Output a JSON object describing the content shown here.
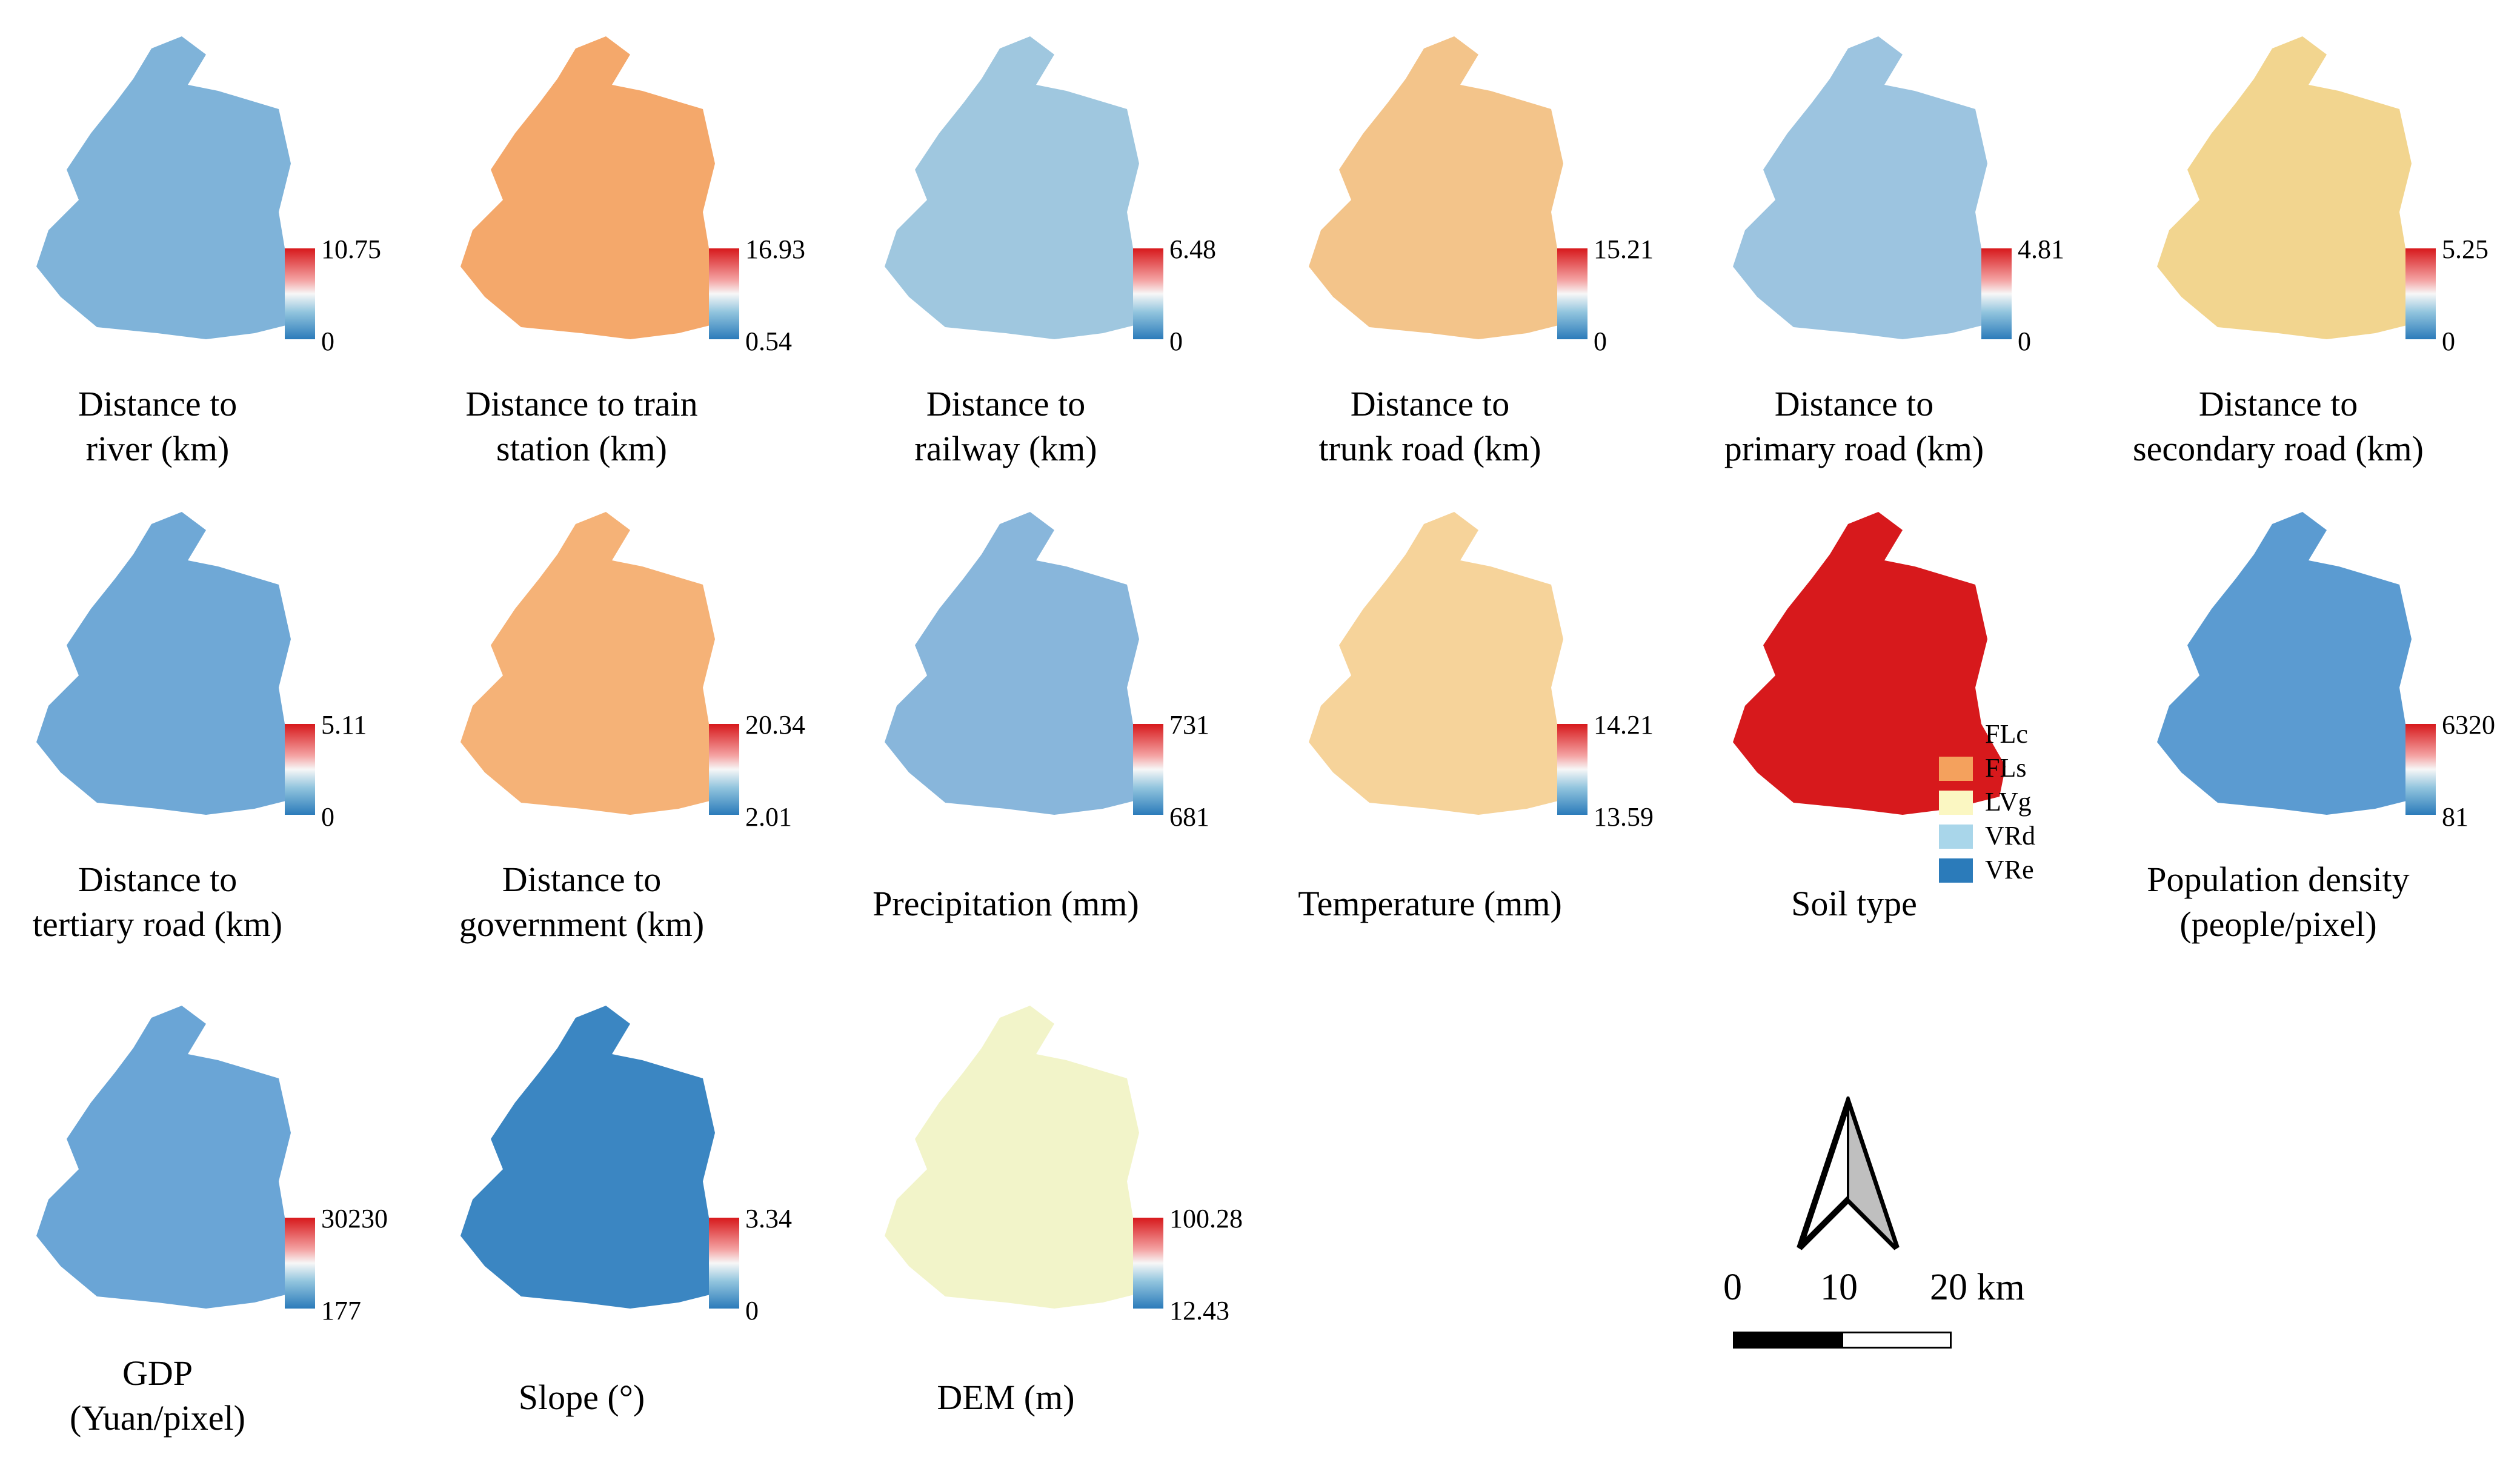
{
  "colors": {
    "ramp_high": "#d7191c",
    "ramp_mid": "#f7f7f7",
    "ramp_low": "#2b7bba"
  },
  "panels": [
    {
      "title_line1": "Distance to",
      "title_line2": "river (km)",
      "legend_max": "10.75",
      "legend_min": "0",
      "fill": "#7fb3d9"
    },
    {
      "title_line1": "Distance to train",
      "title_line2": "station (km)",
      "legend_max": "16.93",
      "legend_min": "0.54",
      "fill": "#f4a86b"
    },
    {
      "title_line1": "Distance to",
      "title_line2": "railway (km)",
      "legend_max": "6.48",
      "legend_min": "0",
      "fill": "#9fc7df"
    },
    {
      "title_line1": "Distance to",
      "title_line2": "trunk road (km)",
      "legend_max": "15.21",
      "legend_min": "0",
      "fill": "#f3c48a"
    },
    {
      "title_line1": "Distance to",
      "title_line2": "primary road (km)",
      "legend_max": "4.81",
      "legend_min": "0",
      "fill": "#9cc4e0"
    },
    {
      "title_line1": "Distance to",
      "title_line2": "secondary road (km)",
      "legend_max": "5.25",
      "legend_min": "0",
      "fill": "#f2d58f"
    },
    {
      "title_line1": "Distance to",
      "title_line2": "tertiary road (km)",
      "legend_max": "5.11",
      "legend_min": "0",
      "fill": "#6fa8d6"
    },
    {
      "title_line1": "Distance to",
      "title_line2": "government (km)",
      "legend_max": "20.34",
      "legend_min": "2.01",
      "fill": "#f5b277"
    },
    {
      "title_line1": "Precipitation (mm)",
      "title_line2": "",
      "legend_max": "731",
      "legend_min": "681",
      "fill": "#88b6db"
    },
    {
      "title_line1": "Temperature (mm)",
      "title_line2": "",
      "legend_max": "14.21",
      "legend_min": "13.59",
      "fill": "#f6d39a"
    },
    {
      "title_line1": "Soil type",
      "title_line2": "",
      "legend_max": "",
      "legend_min": "",
      "fill": "#d7191c"
    },
    {
      "title_line1": "Population density",
      "title_line2": "(people/pixel)",
      "legend_max": "6320",
      "legend_min": "81",
      "fill": "#5b9bd1"
    },
    {
      "title_line1": "GDP",
      "title_line2": "(Yuan/pixel)",
      "legend_max": "30230",
      "legend_min": "177",
      "fill": "#6aa5d6"
    },
    {
      "title_line1": "Slope (°)",
      "title_line2": "",
      "legend_max": "3.34",
      "legend_min": "0",
      "fill": "#3b86c2"
    },
    {
      "title_line1": "DEM (m)",
      "title_line2": "",
      "legend_max": "100.28",
      "legend_min": "12.43",
      "fill": "#f2f4c9"
    }
  ],
  "soil_legend": [
    {
      "label": "FLc",
      "color": "#d7191c"
    },
    {
      "label": "FLs",
      "color": "#f4a15d"
    },
    {
      "label": "LVg",
      "color": "#fbf7c2"
    },
    {
      "label": "VRd",
      "color": "#a9d6ea"
    },
    {
      "label": "VRe",
      "color": "#2b7bba"
    }
  ],
  "scale_bar": {
    "label_0": "0",
    "label_10": "10",
    "label_20": "20 km"
  }
}
